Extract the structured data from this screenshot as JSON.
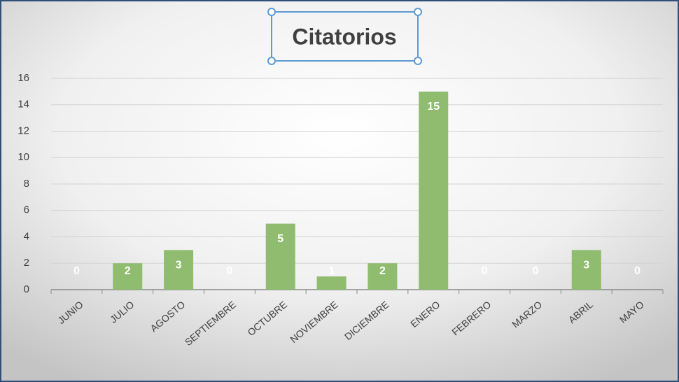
{
  "chart_data": {
    "type": "bar",
    "title": "Citatorios",
    "categories": [
      "JUNIO",
      "JULIO",
      "AGOSTO",
      "SEPTIEMBRE",
      "OCTUBRE",
      "NOVIEMBRE",
      "DICIEMBRE",
      "ENERO",
      "FEBRERO",
      "MARZO",
      "ABRIL",
      "MAYO"
    ],
    "values": [
      0,
      2,
      3,
      0,
      5,
      1,
      2,
      15,
      0,
      0,
      3,
      0
    ],
    "color": "#8fbc6f",
    "ylim": [
      0,
      16
    ],
    "yticks": [
      0,
      2,
      4,
      6,
      8,
      10,
      12,
      14,
      16
    ],
    "grid": true
  }
}
